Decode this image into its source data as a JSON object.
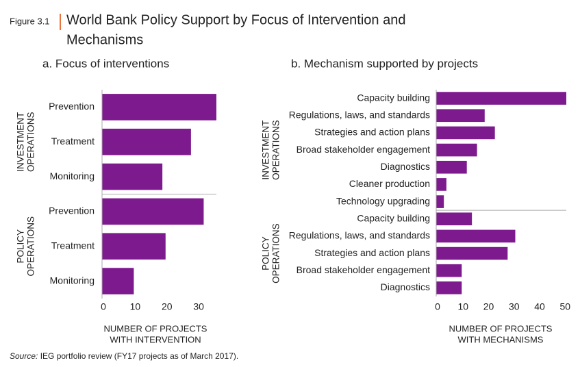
{
  "figure_label": "Figure 3.1",
  "title_lines": [
    "World Bank Policy Support by Focus of Intervention and",
    "Mechanisms"
  ],
  "source_label": "Source:",
  "source": "IEG portfolio review (FY17 projects as of March 2017).",
  "chart_data": [
    {
      "type": "bar",
      "orientation": "horizontal",
      "subtitle": "a. Focus of interventions",
      "color": "#7d1a8e",
      "groups": [
        {
          "label": [
            "INVESTMENT",
            "OPERATIONS"
          ],
          "categories": [
            "Prevention",
            "Treatment",
            "Monitoring"
          ],
          "values": [
            36,
            28,
            19
          ]
        },
        {
          "label": [
            "POLICY",
            "OPERATIONS"
          ],
          "categories": [
            "Prevention",
            "Treatment",
            "Monitoring"
          ],
          "values": [
            32,
            20,
            10
          ]
        }
      ],
      "xlim": [
        0,
        36
      ],
      "xticks": [
        0,
        10,
        20,
        30
      ],
      "xlabel": [
        "NUMBER OF PROJECTS",
        "WITH INTERVENTION"
      ]
    },
    {
      "type": "bar",
      "orientation": "horizontal",
      "subtitle": "b. Mechanism supported by projects",
      "color": "#7d1a8e",
      "groups": [
        {
          "label": [
            "INVESTMENT",
            "OPERATIONS"
          ],
          "categories": [
            "Capacity building",
            "Regulations, laws, and standards",
            "Strategies and action plans",
            "Broad stakeholder engagement",
            "Diagnostics",
            "Cleaner production",
            "Technology upgrading"
          ],
          "values": [
            51,
            19,
            23,
            16,
            12,
            4,
            3
          ]
        },
        {
          "label": [
            "POLICY",
            "OPERATIONS"
          ],
          "categories": [
            "Capacity building",
            "Regulations, laws, and standards",
            "Strategies and action plans",
            "Broad stakeholder engagement",
            "Diagnostics"
          ],
          "values": [
            14,
            31,
            28,
            10,
            10
          ]
        }
      ],
      "xlim": [
        0,
        51
      ],
      "xticks": [
        0,
        10,
        20,
        30,
        40,
        50
      ],
      "xlabel": [
        "NUMBER OF PROJECTS",
        "WITH MECHANISMS"
      ]
    }
  ]
}
